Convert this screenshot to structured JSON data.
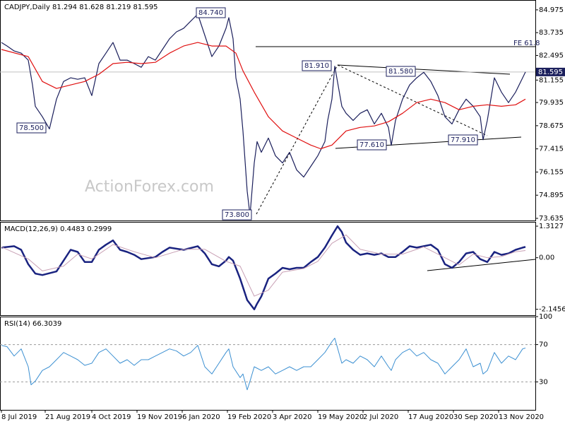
{
  "watermark": "ActionForex.com",
  "chart_data": [
    {
      "type": "line",
      "title": "CADJPY,Daily  81.294 81.628 81.219 81.595",
      "xlim": [
        -1,
        378
      ],
      "ylim": [
        73.52,
        85.51
      ],
      "yticks": [
        84.975,
        83.735,
        82.495,
        81.155,
        79.935,
        78.675,
        77.415,
        76.155,
        74.895,
        73.635
      ],
      "current_price": {
        "value": 81.595,
        "label": "81.595"
      },
      "annotations": [
        "84.740",
        "78.500",
        "73.800",
        "81.910",
        "81.580",
        "77.610",
        "77.910",
        "FE 61.8"
      ],
      "series": [
        {
          "name": "CADJPY",
          "color": "#1b1f5c",
          "x": [
            0,
            4,
            9,
            14,
            19,
            22,
            24,
            29,
            34,
            39,
            44,
            49,
            54,
            59,
            64,
            69,
            74,
            79,
            84,
            89,
            94,
            99,
            104,
            109,
            114,
            119,
            124,
            129,
            134,
            139,
            144,
            149,
            154,
            159,
            161,
            164,
            166,
            169,
            171,
            174,
            176,
            179,
            181,
            184,
            189,
            194,
            199,
            204,
            209,
            214,
            219,
            224,
            229,
            231,
            234,
            236,
            241,
            244,
            249,
            254,
            259,
            264,
            269,
            274,
            276,
            279,
            284,
            289,
            294,
            299,
            304,
            309,
            314,
            319,
            324,
            329,
            334,
            339,
            341,
            344,
            349,
            354,
            359,
            364,
            369,
            371
          ],
          "values": [
            83.2,
            83.01,
            82.74,
            82.62,
            82.24,
            80.89,
            79.73,
            79.16,
            78.5,
            80.12,
            81.08,
            81.28,
            81.2,
            81.28,
            80.31,
            82.05,
            82.62,
            83.2,
            82.24,
            82.24,
            82.05,
            81.85,
            82.43,
            82.24,
            82.82,
            83.4,
            83.78,
            83.97,
            84.36,
            84.74,
            83.59,
            82.43,
            83.01,
            83.97,
            84.55,
            83.4,
            81.28,
            80.12,
            78.39,
            75.11,
            73.8,
            76.65,
            77.81,
            77.23,
            78.0,
            77.04,
            76.65,
            77.23,
            76.27,
            75.88,
            76.46,
            77.04,
            77.81,
            78.96,
            80.12,
            81.91,
            79.73,
            79.35,
            78.96,
            79.35,
            79.54,
            78.77,
            79.35,
            78.58,
            77.61,
            78.96,
            80.12,
            80.89,
            81.28,
            81.58,
            81.08,
            80.31,
            79.16,
            78.77,
            79.54,
            80.12,
            79.73,
            79.16,
            77.91,
            78.96,
            81.28,
            80.5,
            79.93,
            80.5,
            81.28,
            81.595
          ]
        },
        {
          "name": "MA",
          "color": "#e01010",
          "x": [
            0,
            19,
            29,
            39,
            49,
            59,
            69,
            79,
            89,
            99,
            109,
            119,
            129,
            139,
            149,
            159,
            166,
            171,
            179,
            189,
            199,
            209,
            219,
            226,
            234,
            244,
            254,
            264,
            274,
            284,
            294,
            304,
            314,
            324,
            334,
            344,
            354,
            364,
            371
          ],
          "values": [
            82.82,
            82.43,
            81.08,
            80.7,
            80.89,
            81.08,
            81.47,
            82.05,
            82.12,
            82.05,
            82.12,
            82.62,
            83.01,
            83.2,
            83.01,
            83.01,
            82.62,
            81.66,
            80.5,
            79.16,
            78.39,
            78.0,
            77.62,
            77.42,
            77.62,
            78.39,
            78.58,
            78.66,
            78.89,
            79.35,
            79.93,
            80.12,
            79.93,
            79.54,
            79.73,
            79.81,
            79.73,
            79.81,
            80.12
          ]
        }
      ]
    },
    {
      "type": "line",
      "title": "MACD(12,26,9) 0.4483 0.2999",
      "xlim": [
        -1,
        378
      ],
      "ylim": [
        -2.39,
        1.49
      ],
      "yticks": [
        1.3127,
        {
          "value": 0,
          "label": "0.00"
        },
        -2.1456
      ],
      "series": [
        {
          "name": "MACD",
          "color": "#1a2380",
          "width": 2.5,
          "x": [
            0,
            9,
            14,
            19,
            24,
            29,
            39,
            44,
            49,
            54,
            59,
            64,
            69,
            74,
            79,
            84,
            89,
            94,
            99,
            109,
            114,
            119,
            129,
            139,
            144,
            149,
            154,
            159,
            161,
            164,
            169,
            174,
            179,
            181,
            184,
            189,
            194,
            199,
            204,
            209,
            214,
            219,
            224,
            229,
            234,
            238,
            241,
            244,
            249,
            254,
            259,
            264,
            269,
            274,
            279,
            284,
            289,
            294,
            299,
            304,
            309,
            314,
            319,
            324,
            329,
            334,
            339,
            344,
            349,
            354,
            359,
            364,
            369,
            371
          ],
          "values": [
            0.42,
            0.48,
            0.33,
            -0.27,
            -0.66,
            -0.72,
            -0.57,
            -0.12,
            0.33,
            0.24,
            -0.18,
            -0.18,
            0.33,
            0.54,
            0.72,
            0.33,
            0.24,
            0.12,
            -0.06,
            0.03,
            0.24,
            0.42,
            0.33,
            0.48,
            0.18,
            -0.27,
            -0.36,
            -0.12,
            0.03,
            -0.12,
            -0.87,
            -1.76,
            -2.15,
            -1.91,
            -1.61,
            -0.87,
            -0.66,
            -0.42,
            -0.48,
            -0.42,
            -0.42,
            -0.18,
            0.03,
            0.42,
            0.93,
            1.31,
            1.07,
            0.63,
            0.33,
            0.12,
            0.18,
            0.12,
            0.18,
            0.03,
            0.03,
            0.24,
            0.48,
            0.42,
            0.48,
            0.54,
            0.33,
            -0.27,
            -0.42,
            -0.18,
            0.18,
            0.24,
            -0.06,
            -0.18,
            0.24,
            0.12,
            0.18,
            0.33,
            0.42,
            0.4483
          ]
        },
        {
          "name": "Signal",
          "color": "#c8a0b4",
          "width": 1,
          "x": [
            0,
            19,
            29,
            44,
            54,
            64,
            79,
            94,
            109,
            129,
            144,
            159,
            169,
            179,
            189,
            199,
            214,
            224,
            234,
            244,
            254,
            269,
            284,
            299,
            314,
            324,
            334,
            344,
            354,
            364,
            371
          ],
          "values": [
            0.45,
            -0.05,
            -0.55,
            -0.35,
            0.15,
            -0.05,
            0.55,
            0.25,
            0.0,
            0.35,
            0.35,
            -0.15,
            -0.35,
            -1.6,
            -1.35,
            -0.6,
            -0.45,
            -0.15,
            0.6,
            0.95,
            0.35,
            0.15,
            0.15,
            0.45,
            0.0,
            -0.3,
            0.15,
            0.0,
            0.05,
            0.25,
            0.2999
          ]
        }
      ]
    },
    {
      "type": "line",
      "title": "RSI(14) 66.3039",
      "xlim": [
        -1,
        378
      ],
      "ylim": [
        0,
        100
      ],
      "yticks": [
        100,
        70,
        30
      ],
      "level_lines": true,
      "xticks": [
        {
          "value": 0,
          "label": "8 Jul 2019"
        },
        {
          "value": 31,
          "label": "21 Aug 2019"
        },
        {
          "value": 64,
          "label": "4 Oct 2019"
        },
        {
          "value": 96,
          "label": "19 Nov 2019"
        },
        {
          "value": 128,
          "label": "6 Jan 2020"
        },
        {
          "value": 160,
          "label": "19 Feb 2020"
        },
        {
          "value": 192,
          "label": "3 Apr 2020"
        },
        {
          "value": 224,
          "label": "19 May 2020"
        },
        {
          "value": 256,
          "label": "2 Jul 2020"
        },
        {
          "value": 288,
          "label": "17 Aug 2020"
        },
        {
          "value": 320,
          "label": "30 Sep 2020"
        },
        {
          "value": 352,
          "label": "13 Nov 2020"
        }
      ],
      "series": [
        {
          "name": "RSI",
          "color": "#3c90d2",
          "width": 1,
          "x": [
            0,
            4,
            9,
            14,
            19,
            21,
            24,
            29,
            34,
            39,
            44,
            49,
            54,
            59,
            64,
            69,
            74,
            79,
            84,
            89,
            94,
            99,
            104,
            109,
            114,
            119,
            124,
            129,
            134,
            139,
            144,
            149,
            154,
            159,
            161,
            164,
            169,
            171,
            174,
            176,
            179,
            184,
            189,
            194,
            199,
            204,
            209,
            214,
            219,
            224,
            229,
            234,
            236,
            241,
            244,
            249,
            254,
            259,
            264,
            269,
            274,
            276,
            279,
            284,
            289,
            294,
            299,
            304,
            309,
            314,
            319,
            324,
            329,
            334,
            339,
            341,
            344,
            349,
            354,
            359,
            364,
            369,
            371
          ],
          "values": [
            69.2,
            67.7,
            57.7,
            65.4,
            46.2,
            26.9,
            30.8,
            42.3,
            46.2,
            53.8,
            61.5,
            57.7,
            53.8,
            47.7,
            50.0,
            61.5,
            65.4,
            57.7,
            50.0,
            53.8,
            47.7,
            53.8,
            53.8,
            57.7,
            61.5,
            65.4,
            63.1,
            57.7,
            61.5,
            69.2,
            46.2,
            38.5,
            50.0,
            61.5,
            65.4,
            46.2,
            34.6,
            38.5,
            21.5,
            30.8,
            46.2,
            42.3,
            46.2,
            38.5,
            42.3,
            46.2,
            42.3,
            46.2,
            46.2,
            53.8,
            61.5,
            73.1,
            76.9,
            50.0,
            53.8,
            50.0,
            57.7,
            53.8,
            46.2,
            57.7,
            46.2,
            42.3,
            53.8,
            61.5,
            65.4,
            57.7,
            61.5,
            53.8,
            50.0,
            38.5,
            46.2,
            53.8,
            65.4,
            46.2,
            50.0,
            38.5,
            42.3,
            61.5,
            50.0,
            57.7,
            53.8,
            65.4,
            66.3039
          ]
        }
      ]
    }
  ]
}
